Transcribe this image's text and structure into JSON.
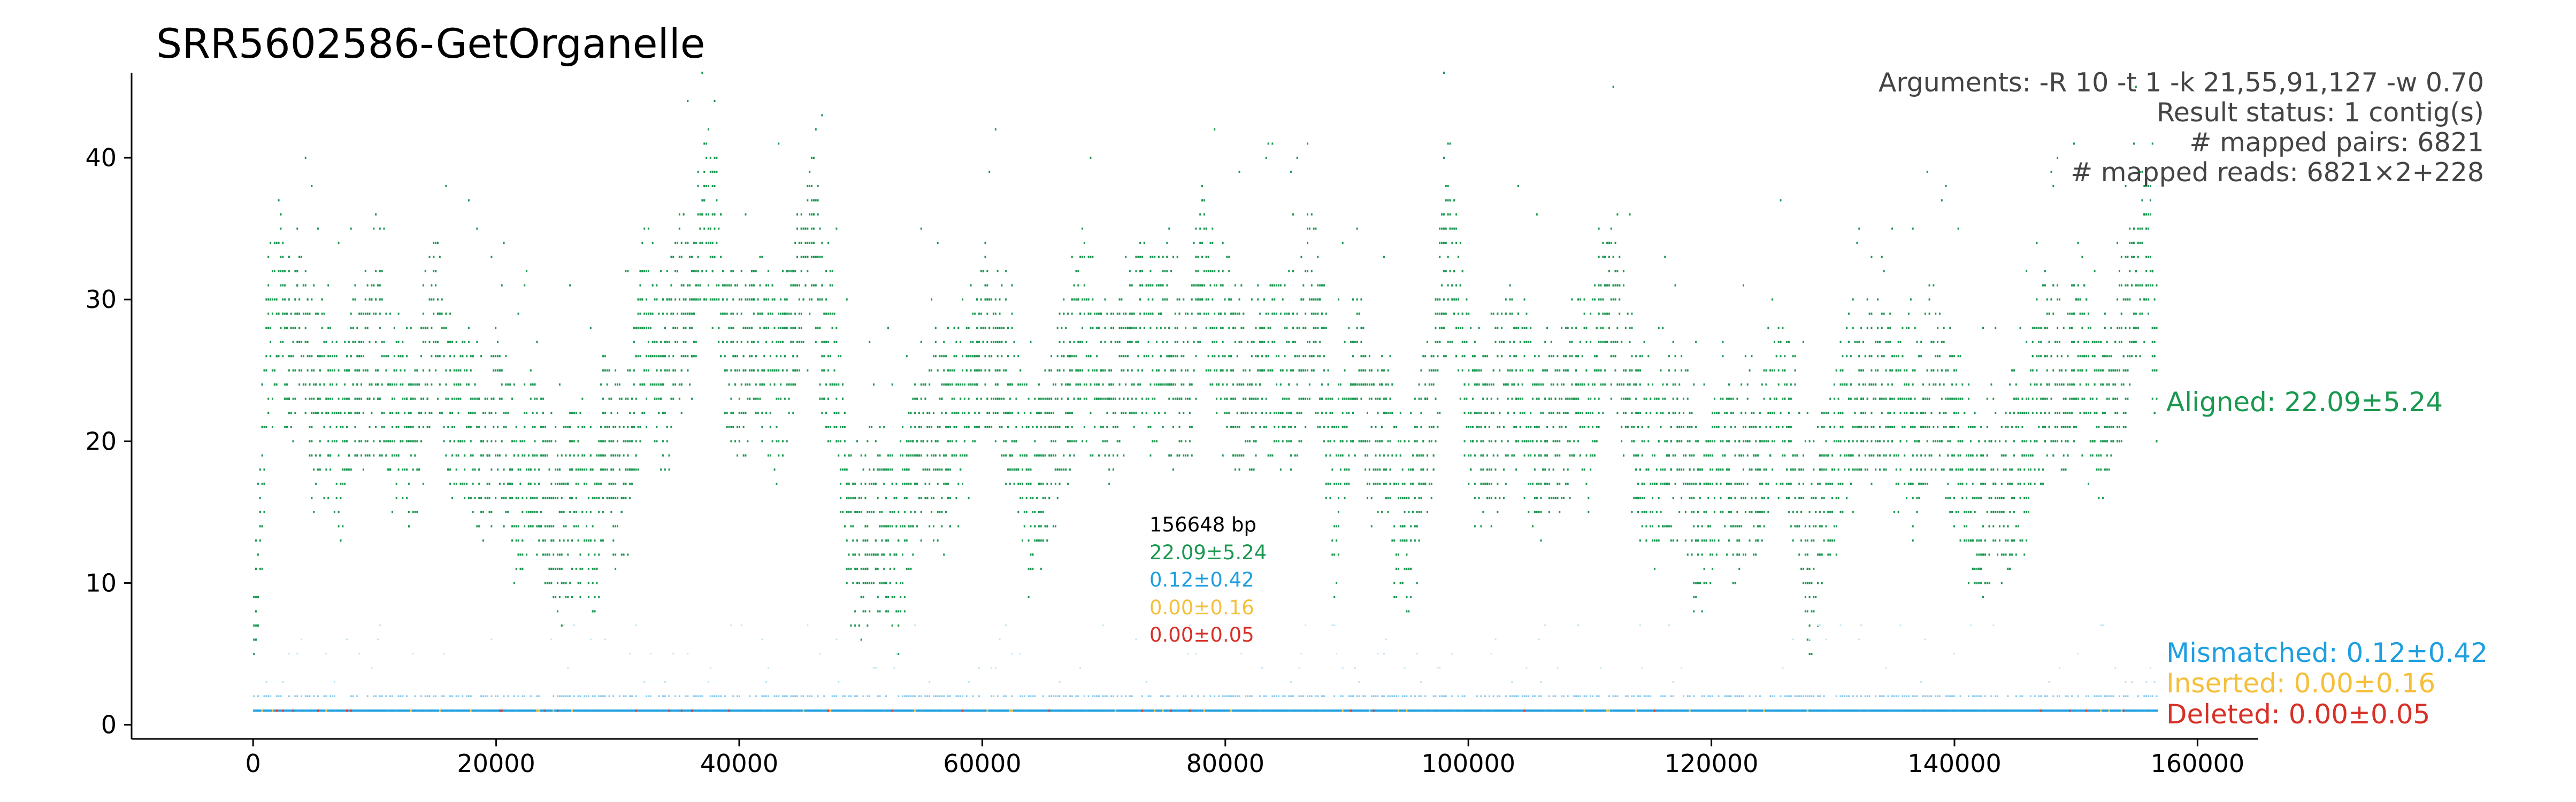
{
  "chart_data": {
    "type": "scatter",
    "title": "SRR5602586-GetOrganelle",
    "xlabel": "",
    "ylabel": "",
    "xlim": [
      -10000,
      165000
    ],
    "ylim": [
      -1,
      46
    ],
    "x_ticks": [
      0,
      20000,
      40000,
      60000,
      80000,
      100000,
      120000,
      140000,
      160000
    ],
    "x_tick_labels": [
      "0",
      "20000",
      "40000",
      "60000",
      "80000",
      "100000",
      "120000",
      "140000",
      "160000"
    ],
    "y_ticks": [
      0,
      10,
      20,
      30,
      40
    ],
    "y_tick_labels": [
      "0",
      "10",
      "20",
      "30",
      "40"
    ],
    "grid": false,
    "sequence_length": 156648,
    "info_lines": [
      "Arguments: -R 10 -t 1 -k 21,55,91,127 -w 0.70",
      "Result status: 1 contig(s)",
      "# mapped pairs: 6821",
      "# mapped reads: 6821×2+228"
    ],
    "length_label": "156648 bp",
    "series": [
      {
        "name": "Aligned",
        "color": "#1a9850",
        "mean": 22.09,
        "sd": 5.24,
        "label": "Aligned: 22.09±5.24",
        "mid_label": "22.09±5.24",
        "profile_x": [
          0,
          1000,
          2000,
          3000,
          4000,
          5000,
          6000,
          7000,
          8000,
          9000,
          10000,
          11000,
          12000,
          13000,
          14000,
          15000,
          16000,
          17000,
          18000,
          19000,
          20000,
          21000,
          22000,
          23000,
          24000,
          25000,
          26000,
          27000,
          28000,
          29000,
          30000,
          31000,
          32000,
          33000,
          34000,
          35000,
          36000,
          37000,
          38000,
          39000,
          40000,
          41000,
          42000,
          43000,
          44000,
          45000,
          46000,
          47000,
          48000,
          49000,
          50000,
          51000,
          52000,
          53000,
          54000,
          55000,
          56000,
          57000,
          58000,
          59000,
          60000,
          61000,
          62000,
          63000,
          64000,
          65000,
          66000,
          67000,
          68000,
          69000,
          70000,
          71000,
          72000,
          73000,
          74000,
          75000,
          76000,
          77000,
          78000,
          79000,
          80000,
          81000,
          82000,
          83000,
          84000,
          85000,
          86000,
          87000,
          88000,
          89000,
          90000,
          91000,
          92000,
          93000,
          94000,
          95000,
          96000,
          97000,
          98000,
          99000,
          100000,
          101000,
          102000,
          103000,
          104000,
          105000,
          106000,
          107000,
          108000,
          109000,
          110000,
          111000,
          112000,
          113000,
          114000,
          115000,
          116000,
          117000,
          118000,
          119000,
          120000,
          121000,
          122000,
          123000,
          124000,
          125000,
          126000,
          127000,
          128000,
          129000,
          130000,
          131000,
          132000,
          133000,
          134000,
          135000,
          136000,
          137000,
          138000,
          139000,
          140000,
          141000,
          142000,
          143000,
          144000,
          145000,
          146000,
          147000,
          148000,
          149000,
          150000,
          151000,
          152000,
          153000,
          154000,
          155000,
          156000,
          156648
        ],
        "profile_y": [
          5,
          24,
          30,
          26,
          28,
          22,
          24,
          20,
          24,
          24,
          27,
          22,
          22,
          20,
          24,
          30,
          22,
          24,
          20,
          20,
          22,
          18,
          16,
          20,
          16,
          14,
          16,
          16,
          14,
          20,
          18,
          20,
          28,
          26,
          24,
          30,
          28,
          36,
          34,
          26,
          24,
          28,
          26,
          24,
          28,
          30,
          36,
          26,
          24,
          14,
          12,
          16,
          14,
          12,
          18,
          20,
          20,
          20,
          22,
          24,
          28,
          26,
          24,
          20,
          16,
          18,
          20,
          24,
          28,
          26,
          24,
          24,
          26,
          28,
          26,
          28,
          24,
          24,
          34,
          28,
          26,
          24,
          24,
          26,
          26,
          24,
          26,
          30,
          24,
          16,
          22,
          24,
          20,
          22,
          16,
          14,
          20,
          22,
          34,
          30,
          22,
          20,
          22,
          24,
          24,
          22,
          20,
          20,
          22,
          24,
          22,
          28,
          30,
          24,
          20,
          18,
          18,
          20,
          18,
          14,
          16,
          20,
          16,
          20,
          16,
          24,
          22,
          18,
          10,
          16,
          18,
          22,
          22,
          24,
          24,
          22,
          22,
          20,
          24,
          22,
          20,
          18,
          14,
          18,
          16,
          18,
          20,
          24,
          26,
          22,
          28,
          24,
          22,
          24,
          28,
          32,
          34,
          22
        ]
      },
      {
        "name": "Mismatched",
        "color": "#1e9fe0",
        "mean": 0.12,
        "sd": 0.42,
        "label": "Mismatched: 0.12±0.42",
        "mid_label": "0.12±0.42"
      },
      {
        "name": "Inserted",
        "color": "#f5bf3a",
        "mean": 0.0,
        "sd": 0.16,
        "label": "Inserted: 0.00±0.16",
        "mid_label": "0.00±0.16"
      },
      {
        "name": "Deleted",
        "color": "#d73027",
        "mean": 0.0,
        "sd": 0.05,
        "label": "Deleted: 0.00±0.05",
        "mid_label": "0.00±0.05"
      }
    ]
  }
}
